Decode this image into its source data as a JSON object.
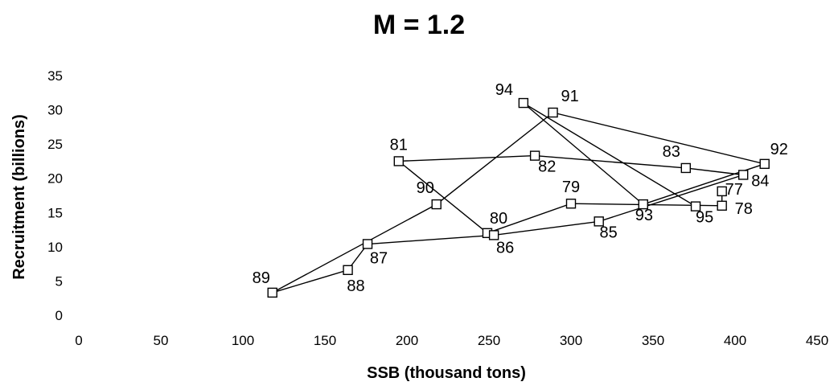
{
  "chart_data": {
    "type": "scatter",
    "title": "M = 1.2",
    "xlabel": "SSB (thousand tons)",
    "ylabel": "Recruitment (billions)",
    "xlim": [
      0,
      450
    ],
    "ylim": [
      0,
      35
    ],
    "xticks": [
      0,
      50,
      100,
      150,
      200,
      250,
      300,
      350,
      400,
      450
    ],
    "yticks": [
      0,
      5,
      10,
      15,
      20,
      25,
      30,
      35
    ],
    "grid": false,
    "legend": "none",
    "connected": true,
    "series": [
      {
        "points": [
          {
            "label": "77",
            "x": 392,
            "y": 18.1
          },
          {
            "label": "78",
            "x": 392,
            "y": 16.0
          },
          {
            "label": "79",
            "x": 300,
            "y": 16.3
          },
          {
            "label": "80",
            "x": 249,
            "y": 12.0
          },
          {
            "label": "81",
            "x": 195,
            "y": 22.5
          },
          {
            "label": "82",
            "x": 278,
            "y": 23.3
          },
          {
            "label": "83",
            "x": 370,
            "y": 21.5
          },
          {
            "label": "84",
            "x": 405,
            "y": 20.5
          },
          {
            "label": "85",
            "x": 317,
            "y": 13.7
          },
          {
            "label": "86",
            "x": 253,
            "y": 11.7
          },
          {
            "label": "87",
            "x": 176,
            "y": 10.4
          },
          {
            "label": "88",
            "x": 164,
            "y": 6.6
          },
          {
            "label": "89",
            "x": 118,
            "y": 3.3
          },
          {
            "label": "90",
            "x": 218,
            "y": 16.2
          },
          {
            "label": "91",
            "x": 289,
            "y": 29.6
          },
          {
            "label": "92",
            "x": 418,
            "y": 22.1
          },
          {
            "label": "93",
            "x": 344,
            "y": 16.2
          },
          {
            "label": "94",
            "x": 271,
            "y": 31.0
          },
          {
            "label": "95",
            "x": 376,
            "y": 15.9
          }
        ]
      }
    ]
  }
}
